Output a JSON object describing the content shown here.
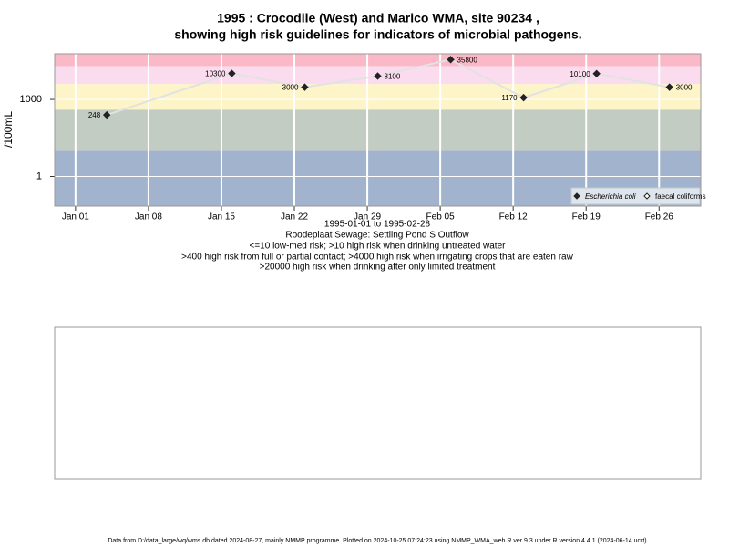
{
  "chart_data": {
    "type": "line",
    "title": "1995 : Crocodile (West) and Marico WMA, site 90234 ,",
    "subtitle": "showing high risk guidelines for indicators of microbial pathogens.",
    "y_label": "/100mL",
    "x_label": "1995-01-01 to 1995-02-28",
    "notes": [
      "Roodeplaat Sewage: Settling Pond S Outflow",
      "<=10 low-med risk; >10 high risk when drinking untreated water",
      ">400 high risk from full or partial contact; >4000 high risk when irrigating crops that are eaten raw",
      ">20000 high risk when drinking after only limited treatment"
    ],
    "footer": "Data from D:/data_large/wq/wms.db dated 2024-08-27, mainly NMMP programme. Plotted on 2024-10-25 07:24:23 using NMMP_WMA_web.R ver 9.3 under R version 4.4.1 (2024-06-14 ucrt)",
    "log_y": true,
    "grid": true,
    "legend_position": "bottom-right",
    "thresholds": [
      10,
      400,
      4000,
      20000
    ],
    "band_colors": [
      "#a2b3cd",
      "#c3ccc3",
      "#fdf5c8",
      "#fbdcef",
      "#fbb8c6"
    ],
    "line_color": "#e2e2e2",
    "x": [
      "1995-01-04",
      "1995-01-16",
      "1995-01-23",
      "1995-01-30",
      "1995-02-06",
      "1995-02-13",
      "1995-02-20",
      "1995-02-27"
    ],
    "series": [
      {
        "name": "Escherichia coli",
        "color": "#222222",
        "values": [
          248,
          10300,
          3000,
          8100,
          35800,
          1170,
          10100,
          3000
        ]
      },
      {
        "name": "faecal coliforms",
        "color": "#222222",
        "values": [
          null,
          null,
          null,
          null,
          null,
          null,
          null,
          null
        ]
      }
    ],
    "xlim": [
      "1994-12-30",
      "1995-03-02"
    ],
    "xticks": [
      {
        "value": "1995-01-01",
        "label": "Jan 01"
      },
      {
        "value": "1995-01-08",
        "label": "Jan 08"
      },
      {
        "value": "1995-01-15",
        "label": "Jan 15"
      },
      {
        "value": "1995-01-22",
        "label": "Jan 22"
      },
      {
        "value": "1995-01-29",
        "label": "Jan 29"
      },
      {
        "value": "1995-02-05",
        "label": "Feb 05"
      },
      {
        "value": "1995-02-12",
        "label": "Feb 12"
      },
      {
        "value": "1995-02-19",
        "label": "Feb 19"
      },
      {
        "value": "1995-02-26",
        "label": "Feb 26"
      }
    ],
    "ylim": [
      0.07,
      60000
    ],
    "yticks": [
      1,
      1000
    ]
  }
}
